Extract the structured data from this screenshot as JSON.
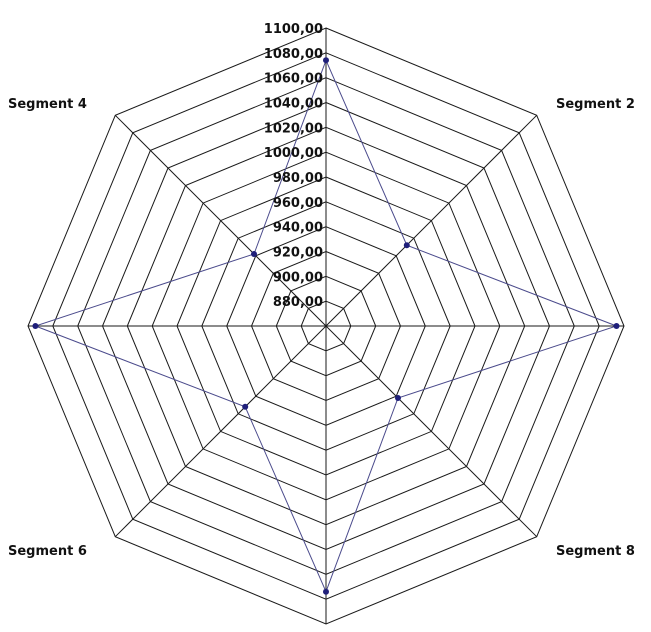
{
  "chart_data": {
    "type": "radar",
    "categories": [
      "",
      "Segment 2",
      "",
      "Segment 8",
      "",
      "Segment 6",
      "",
      "Segment 4"
    ],
    "visible_segment_labels": [
      "Segment 4",
      "Segment 2",
      "Segment 6",
      "Segment 8"
    ],
    "ticks": [
      "880,00",
      "900,00",
      "920,00",
      "940,00",
      "960,00",
      "980,00",
      "1000,00",
      "1020,00",
      "1040,00",
      "1060,00",
      "1080,00",
      "1100,00"
    ],
    "rlim": [
      860,
      1100
    ],
    "series": [
      {
        "values": [
          1074,
          952,
          1094,
          942,
          1074,
          952,
          1094,
          942
        ],
        "color": "#1f1f7a"
      }
    ],
    "grid": true
  }
}
